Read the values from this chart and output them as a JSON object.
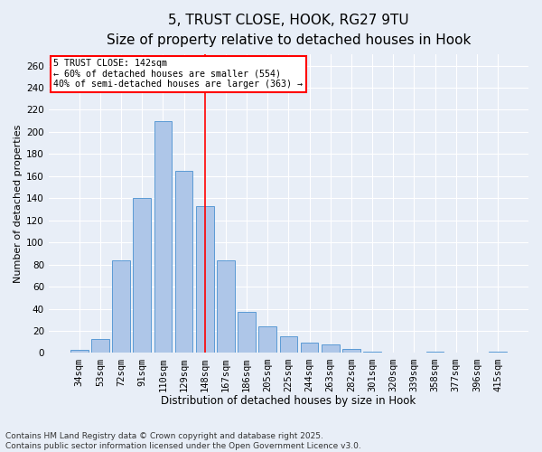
{
  "title": "5, TRUST CLOSE, HOOK, RG27 9TU",
  "subtitle": "Size of property relative to detached houses in Hook",
  "xlabel": "Distribution of detached houses by size in Hook",
  "ylabel": "Number of detached properties",
  "categories": [
    "34sqm",
    "53sqm",
    "72sqm",
    "91sqm",
    "110sqm",
    "129sqm",
    "148sqm",
    "167sqm",
    "186sqm",
    "205sqm",
    "225sqm",
    "244sqm",
    "263sqm",
    "282sqm",
    "301sqm",
    "320sqm",
    "339sqm",
    "358sqm",
    "377sqm",
    "396sqm",
    "415sqm"
  ],
  "values": [
    3,
    13,
    84,
    140,
    210,
    165,
    133,
    84,
    37,
    24,
    15,
    9,
    8,
    4,
    1,
    0,
    0,
    1,
    0,
    0,
    1
  ],
  "bar_color": "#aec6e8",
  "bar_edge_color": "#5b9bd5",
  "background_color": "#e8eef7",
  "grid_color": "#ffffff",
  "vline_x_idx": 6,
  "vline_color": "red",
  "annotation_text": "5 TRUST CLOSE: 142sqm\n← 60% of detached houses are smaller (554)\n40% of semi-detached houses are larger (363) →",
  "annotation_box_color": "white",
  "annotation_box_edge": "red",
  "ylim": [
    0,
    270
  ],
  "yticks": [
    0,
    20,
    40,
    60,
    80,
    100,
    120,
    140,
    160,
    180,
    200,
    220,
    240,
    260
  ],
  "footnote": "Contains HM Land Registry data © Crown copyright and database right 2025.\nContains public sector information licensed under the Open Government Licence v3.0.",
  "title_fontsize": 11,
  "subtitle_fontsize": 10,
  "xlabel_fontsize": 8.5,
  "ylabel_fontsize": 8,
  "tick_fontsize": 7.5,
  "footnote_fontsize": 6.5
}
